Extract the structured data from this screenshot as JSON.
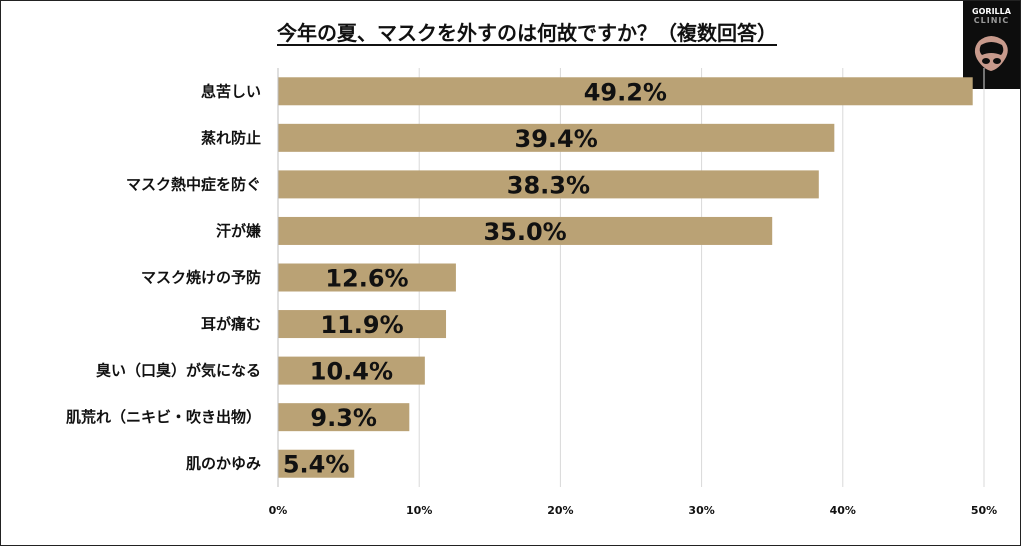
{
  "header": {
    "title": "今年の夏、マスクを外すのは何故ですか？（複数回答）"
  },
  "logo": {
    "line1": "GORILLA",
    "line2": "CLINIC",
    "icon": "gorilla-icon"
  },
  "chart_data": {
    "type": "bar",
    "orientation": "horizontal",
    "title": "今年の夏、マスクを外すのは何故ですか？（複数回答）",
    "categories": [
      "息苦しい",
      "蒸れ防止",
      "マスク熱中症を防ぐ",
      "汗が嫌",
      "マスク焼けの予防",
      "耳が痛む",
      "臭い（口臭）が気になる",
      "肌荒れ（ニキビ・吹き出物）",
      "肌のかゆみ"
    ],
    "values": [
      49.2,
      39.4,
      38.3,
      35.0,
      12.6,
      11.9,
      10.4,
      9.3,
      5.4
    ],
    "value_labels": [
      "49.2%",
      "39.4%",
      "38.3%",
      "35.0%",
      "12.6%",
      "11.9%",
      "10.4%",
      "9.3%",
      "5.4%"
    ],
    "xlim": [
      0,
      50
    ],
    "xticks": [
      "0%",
      "10%",
      "20%",
      "30%",
      "40%",
      "50%"
    ],
    "xlabel": "",
    "ylabel": "",
    "grid": true,
    "legend": "none",
    "bar_color": "#baa275",
    "grid_color": "#d9d9d9"
  }
}
